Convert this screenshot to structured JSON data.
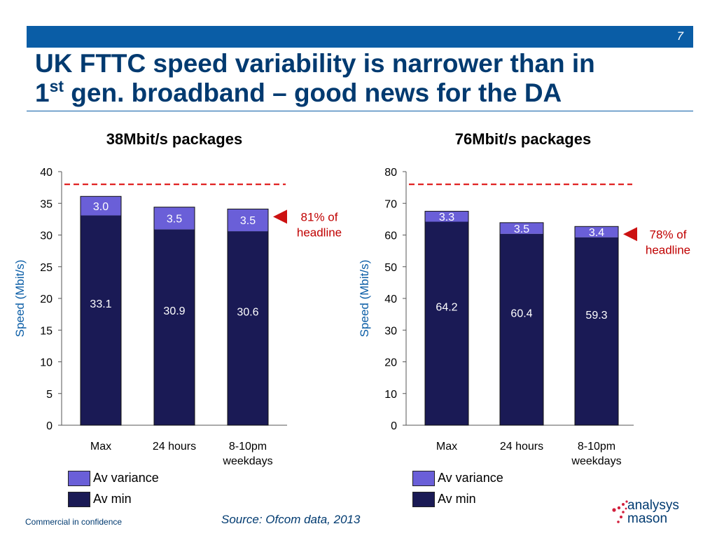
{
  "header": {
    "page_number": "7",
    "title_line1": "UK FTTC speed variability is narrower than in",
    "title_line2_prefix": "1",
    "title_line2_sup": "st",
    "title_line2_rest": " gen. broadband – good news for the DA"
  },
  "colors": {
    "av_min": "#1a1a55",
    "av_variance": "#6a5fd8",
    "headline_dash": "#e02020",
    "marker": "#cc1111",
    "annotation_text": "#c00000",
    "brand_blue": "#0a5da6"
  },
  "chart_data": [
    {
      "type": "bar",
      "stacked": true,
      "title": "38Mbit/s packages",
      "ylabel": "Speed (Mbit/s)",
      "ylim": [
        0,
        40
      ],
      "yticks": [
        "0",
        "5",
        "10",
        "15",
        "20",
        "25",
        "30",
        "35",
        "40"
      ],
      "categories": [
        "Max",
        "24 hours",
        "8-10pm weekdays"
      ],
      "series": [
        {
          "name": "Av min",
          "values": [
            33.1,
            30.9,
            30.6
          ],
          "labels": [
            "33.1",
            "30.9",
            "30.6"
          ]
        },
        {
          "name": "Av variance",
          "values": [
            3.0,
            3.5,
            3.5
          ],
          "labels": [
            "3.0",
            "3.5",
            "3.5"
          ]
        }
      ],
      "headline": 38,
      "annotation_line1": "81% of",
      "annotation_line2": "headline",
      "legend": [
        "Av variance",
        "Av min"
      ]
    },
    {
      "type": "bar",
      "stacked": true,
      "title": "76Mbit/s packages",
      "ylabel": "Speed (Mbit/s)",
      "ylim": [
        0,
        80
      ],
      "yticks": [
        "0",
        "10",
        "20",
        "30",
        "40",
        "50",
        "60",
        "70",
        "80"
      ],
      "categories": [
        "Max",
        "24 hours",
        "8-10pm weekdays"
      ],
      "series": [
        {
          "name": "Av min",
          "values": [
            64.2,
            60.4,
            59.3
          ],
          "labels": [
            "64.2",
            "60.4",
            "59.3"
          ]
        },
        {
          "name": "Av variance",
          "values": [
            3.3,
            3.5,
            3.4
          ],
          "labels": [
            "3.3",
            "3.5",
            "3.4"
          ]
        }
      ],
      "headline": 76,
      "annotation_line1": "78% of",
      "annotation_line2": "headline",
      "legend": [
        "Av variance",
        "Av min"
      ]
    }
  ],
  "footer": {
    "confidential": "Commercial in confidence",
    "source": "Source: Ofcom data, 2013",
    "logo_line1": "analysys",
    "logo_line2": "mason"
  }
}
